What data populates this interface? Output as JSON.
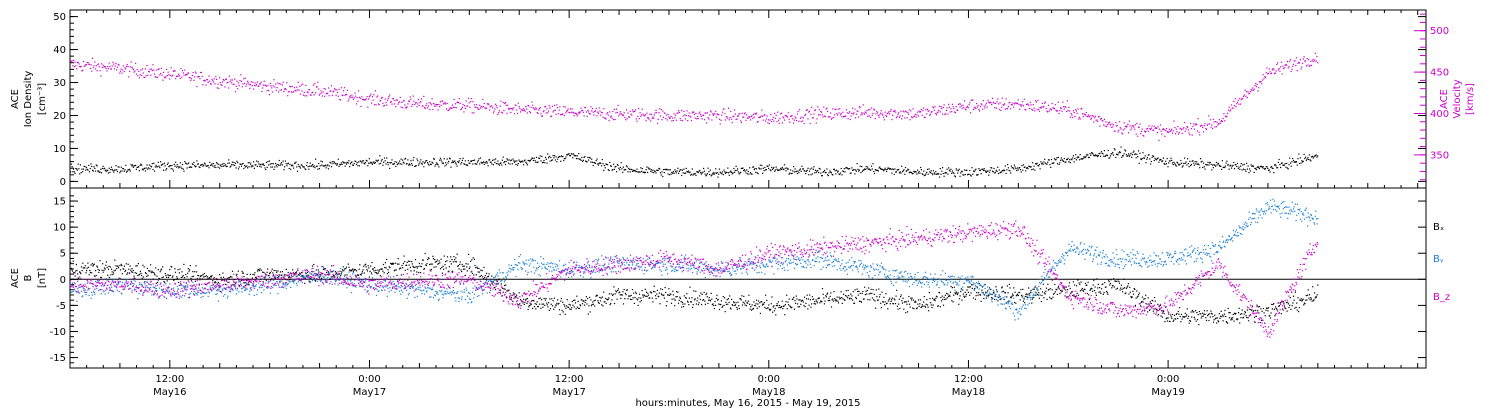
{
  "chart_data": [
    {
      "type": "scatter",
      "panel": "top",
      "ylabel_left": [
        "ACE",
        "Ion Density",
        "[cm⁻³]"
      ],
      "ylabel_right": [
        "ACE",
        "Velocity",
        "[km/s]"
      ],
      "ylim_left": [
        -2,
        52
      ],
      "yticks_left": [
        0,
        10,
        20,
        30,
        40,
        50
      ],
      "ylim_right": [
        310,
        525
      ],
      "yticks_right": [
        350,
        400,
        450,
        500
      ],
      "series": [
        {
          "axis": "left",
          "color": "#000000",
          "x": [
            0,
            3,
            6,
            9,
            12,
            15,
            18,
            21,
            24,
            27,
            30,
            33,
            36,
            39,
            42,
            45,
            48,
            51,
            54,
            57,
            60,
            63,
            66,
            69,
            72,
            75
          ],
          "values": [
            4,
            4,
            5,
            5,
            5,
            5,
            6,
            6,
            6,
            6,
            8,
            4,
            3,
            3,
            4,
            3,
            4,
            3,
            3,
            4,
            7,
            9,
            6,
            5,
            4,
            8
          ]
        },
        {
          "axis": "right",
          "color": "#cc00cc",
          "x": [
            0,
            3,
            6,
            9,
            12,
            15,
            18,
            21,
            24,
            27,
            30,
            33,
            36,
            39,
            42,
            45,
            48,
            51,
            54,
            57,
            60,
            63,
            66,
            69,
            72,
            75
          ],
          "values": [
            460,
            455,
            448,
            440,
            433,
            428,
            418,
            412,
            410,
            405,
            402,
            400,
            398,
            398,
            395,
            400,
            402,
            400,
            410,
            412,
            405,
            385,
            378,
            390,
            450,
            470
          ]
        }
      ]
    },
    {
      "type": "scatter",
      "panel": "bottom",
      "ylabel": [
        "ACE",
        "B",
        "[nT]"
      ],
      "ylim": [
        -17,
        17.5
      ],
      "yticks": [
        -15,
        -10,
        -5,
        0,
        5,
        10,
        15
      ],
      "legend": [
        "Bₓ",
        "Bᵧ",
        "B_z"
      ],
      "series": [
        {
          "name": "Bₓ",
          "color": "#000000",
          "x": [
            0,
            3,
            6,
            9,
            12,
            15,
            18,
            21,
            24,
            27,
            30,
            33,
            36,
            39,
            42,
            45,
            48,
            51,
            54,
            57,
            60,
            63,
            66,
            69,
            72,
            75
          ],
          "values": [
            2,
            2,
            1,
            0,
            1,
            1,
            2,
            3,
            3,
            -4,
            -5,
            -3,
            -3,
            -4,
            -5,
            -4,
            -3,
            -5,
            -2,
            -3,
            -2,
            -1,
            -7,
            -7,
            -6,
            -3
          ]
        },
        {
          "name": "Bᵧ",
          "color": "#1a7fd6",
          "x": [
            0,
            3,
            6,
            9,
            12,
            15,
            18,
            21,
            24,
            27,
            30,
            33,
            36,
            39,
            42,
            45,
            48,
            51,
            54,
            57,
            60,
            63,
            66,
            69,
            72,
            75
          ],
          "values": [
            -2,
            -1,
            -2,
            -2,
            -1,
            1,
            -1,
            -2,
            -3,
            3,
            2,
            3,
            3,
            2,
            3,
            4,
            2,
            0,
            0,
            -6,
            6,
            4,
            4,
            6,
            14,
            12
          ]
        },
        {
          "name": "B_z",
          "color": "#cc00cc",
          "x": [
            0,
            3,
            6,
            9,
            12,
            15,
            18,
            21,
            24,
            27,
            30,
            33,
            36,
            39,
            42,
            45,
            48,
            51,
            54,
            57,
            60,
            63,
            66,
            69,
            72,
            75
          ],
          "values": [
            -1,
            -1,
            -2,
            -1,
            0,
            1,
            -1,
            0,
            0,
            -4,
            2,
            3,
            4,
            2,
            5,
            6,
            7,
            8,
            9,
            10,
            -3,
            -6,
            -5,
            3,
            -10,
            8
          ]
        }
      ]
    },
    {
      "type": "time-axis",
      "xlim_hours": [
        0,
        81.5
      ],
      "major_ticks": [
        {
          "h": 6,
          "time": "12:00",
          "date": "May16"
        },
        {
          "h": 18,
          "time": "0:00",
          "date": "May17"
        },
        {
          "h": 30,
          "time": "12:00",
          "date": "May17"
        },
        {
          "h": 42,
          "time": "0:00",
          "date": "May18"
        },
        {
          "h": 54,
          "time": "12:00",
          "date": "May18"
        },
        {
          "h": 66,
          "time": "0:00",
          "date": "May19"
        }
      ],
      "xlabel": "hours:minutes, May 16, 2015 - May 19, 2015"
    }
  ]
}
